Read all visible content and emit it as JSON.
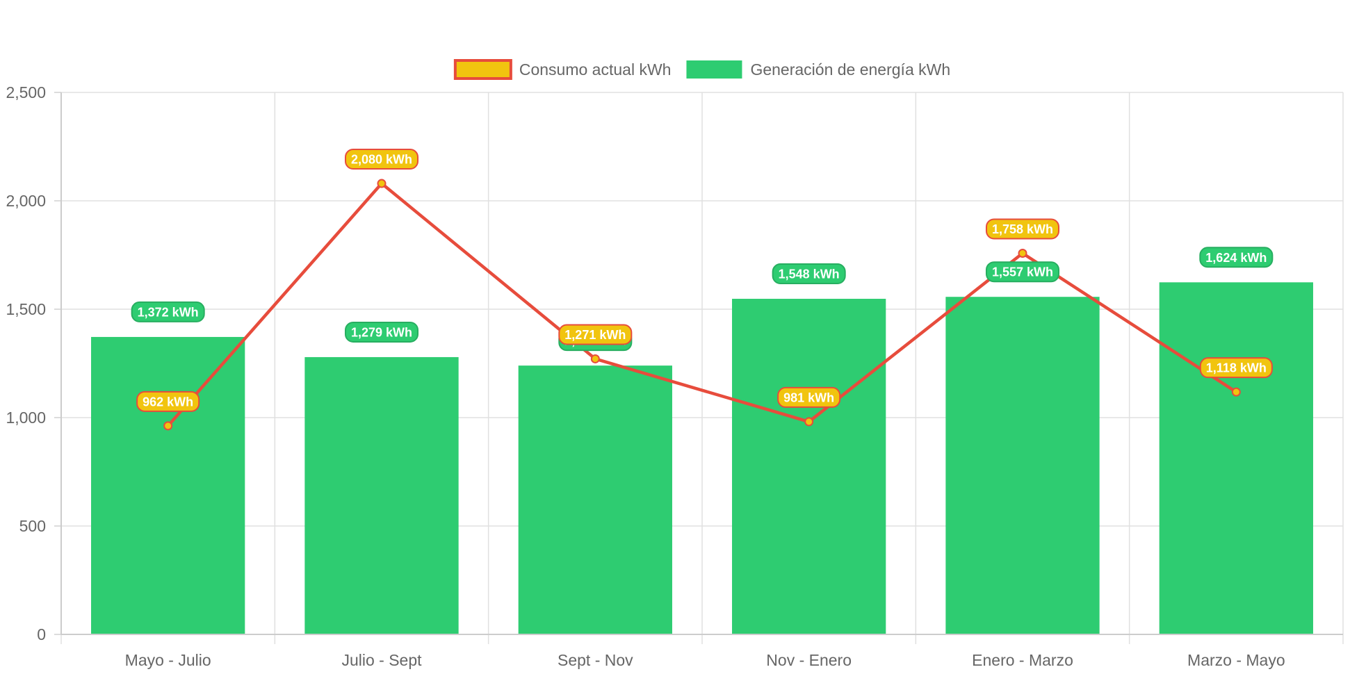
{
  "chart_data": {
    "type": "bar",
    "title": "",
    "xlabel": "",
    "ylabel": "",
    "categories": [
      "Mayo - Julio",
      "Julio - Sept",
      "Sept - Nov",
      "Nov - Enero",
      "Enero - Marzo",
      "Marzo - Mayo"
    ],
    "ylim": [
      0,
      2500
    ],
    "yticks": [
      0,
      500,
      1000,
      1500,
      2000,
      2500
    ],
    "ytick_labels": [
      "0",
      "500",
      "1,000",
      "1,500",
      "2,000",
      "2,500"
    ],
    "grid": true,
    "legend_position": "top",
    "series": [
      {
        "name": "Consumo actual kWh",
        "type": "line",
        "values": [
          962,
          2080,
          1271,
          981,
          1758,
          1118
        ],
        "data_labels": [
          "962 kWh",
          "2,080 kWh",
          "1,271 kWh",
          "981 kWh",
          "1,758 kWh",
          "1,118 kWh"
        ],
        "color": "#e74c3c",
        "fill_color": "#f1c40f"
      },
      {
        "name": "Generación de energía kWh",
        "type": "bar",
        "values": [
          1372,
          1279,
          1240,
          1548,
          1557,
          1624
        ],
        "data_labels": [
          "1,372 kWh",
          "1,279 kWh",
          "1,240 kWh",
          "1,548 kWh",
          "1,557 kWh",
          "1,624 kWh"
        ],
        "color": "#2ecc71",
        "fill_color": "#2ecc71"
      }
    ]
  }
}
